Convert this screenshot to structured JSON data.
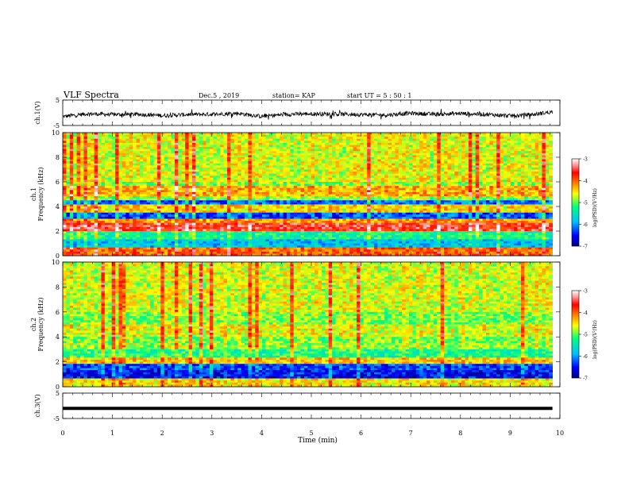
{
  "header": {
    "title": "VLF Spectra",
    "date": "Dec.5 , 2019",
    "station": "station= KAP",
    "start": "start  UT  =   5  : 50 : 1"
  },
  "chart_data": [
    {
      "id": "ch1-waveform",
      "type": "line",
      "ylabel": "ch.1(V)",
      "ylim": [
        -5,
        5
      ],
      "yticks": [
        "5",
        "-5"
      ],
      "xlim": [
        0,
        10
      ],
      "series": [
        {
          "description_values": "noisy trace around -0.6 V",
          "x": [
            0,
            0.5,
            1,
            1.5,
            2,
            2.5,
            3,
            3.5,
            4,
            4.5,
            5,
            5.5,
            6,
            6.5,
            7,
            7.5,
            8,
            8.5,
            9,
            9.5,
            9.85
          ],
          "values": [
            -1.5,
            -0.4,
            -0.7,
            -0.6,
            -1.1,
            -0.7,
            -0.6,
            -0.2,
            -1.4,
            -0.6,
            -0.4,
            -0.5,
            -0.7,
            -0.9,
            -0.2,
            -0.6,
            -0.3,
            -0.6,
            -1.2,
            -0.6,
            0.4
          ]
        }
      ]
    },
    {
      "id": "ch1-spectrogram",
      "type": "heatmap",
      "ylabel": "ch.1\nFrequency  (kHz)",
      "ylim": [
        0,
        10
      ],
      "yticks": [
        "10",
        "8",
        "6",
        "4",
        "2",
        "0"
      ],
      "xlim": [
        0,
        9.85
      ],
      "colorbar": {
        "label": "log(PSD)(V²/Hz)",
        "range": [
          -7,
          -3
        ],
        "ticks": [
          "-3",
          "-4",
          "-5",
          "-6",
          "-7"
        ],
        "colors": [
          "#000080",
          "#0000ff",
          "#00bfff",
          "#00ff7f",
          "#ffff00",
          "#ff8000",
          "#ff0000",
          "#ff9999",
          "#ffffff"
        ]
      },
      "bands": [
        {
          "f": 5.3,
          "level": -4.3
        },
        {
          "f": 4.1,
          "level": -6.2
        },
        {
          "f": 3.7,
          "level": -4.5
        },
        {
          "f": 3.1,
          "level": -6.3
        },
        {
          "f": 2.6,
          "level": -4.2
        },
        {
          "f": 2.3,
          "level": -3.6
        },
        {
          "f": 1.5,
          "level": -5.3
        },
        {
          "f": 0.9,
          "level": -5.8
        },
        {
          "f": 0.2,
          "level": -4.0
        }
      ]
    },
    {
      "id": "ch2-spectrogram",
      "type": "heatmap",
      "ylabel": "ch.2\nFrequency  (kHz)",
      "ylim": [
        0,
        10
      ],
      "yticks": [
        "10",
        "8",
        "6",
        "4",
        "2",
        "0"
      ],
      "xlim": [
        0,
        9.85
      ],
      "colorbar": {
        "label": "log(PSD)(V²/Hz)",
        "range": [
          -7,
          -3
        ],
        "ticks": [
          "-3",
          "-4",
          "-5",
          "-6",
          "-7"
        ],
        "colors": [
          "#000080",
          "#0000ff",
          "#00bfff",
          "#00ff7f",
          "#ffff00",
          "#ff8000",
          "#ff0000",
          "#ff9999",
          "#ffffff"
        ]
      },
      "bands": [
        {
          "f": 4.5,
          "level": -4.6
        },
        {
          "f": 3.1,
          "level": -4.8
        },
        {
          "f": 2.6,
          "level": -5.2
        },
        {
          "f": 1.9,
          "level": -4.4
        },
        {
          "f": 1.3,
          "level": -6.3
        },
        {
          "f": 0.8,
          "level": -6.5
        },
        {
          "f": 0.3,
          "level": -4.5
        }
      ]
    },
    {
      "id": "ch3-waveform",
      "type": "line",
      "ylabel": "ch.3(V)",
      "ylim": [
        -5,
        5
      ],
      "yticks": [
        "5",
        "-5"
      ],
      "xlabel": "Time  (min)",
      "xlim": [
        0,
        10
      ],
      "xticks": [
        "0",
        "1",
        "2",
        "3",
        "4",
        "5",
        "6",
        "7",
        "8",
        "9",
        "10"
      ],
      "series": [
        {
          "x": [
            0,
            9.85
          ],
          "values": [
            -1.0,
            -1.0
          ]
        }
      ]
    }
  ]
}
